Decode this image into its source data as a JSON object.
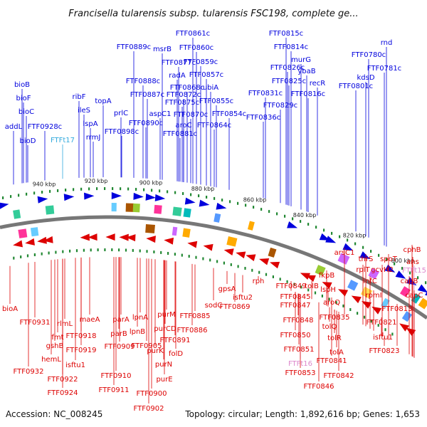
{
  "title": "Francisella tularensis subsp. tularensis FSC198, complete ge...",
  "footer": {
    "accession": "Accession: NC_008245",
    "topology": "Topology: circular; Length: 1,892,616 bp; Genes: 1,653"
  },
  "ticks": [
    "940 kbp",
    "920 kbp",
    "900 kbp",
    "880 kbp",
    "860 kbp",
    "840 kbp",
    "820 kbp",
    "800 kbp"
  ],
  "colors": {
    "forward": "#0000dd",
    "reverse": "#dd0000",
    "trna_forward": "#33aadd",
    "trna_reverse": "#dd88cc",
    "backbone": "#777777",
    "tick": "#228833"
  },
  "forward_labels": [
    "bioB",
    "bioF",
    "bioC",
    "addL",
    "bioD",
    "FTF0928c",
    "FTFt17",
    "ribF",
    "ileS",
    "lspA",
    "rrmJ",
    "topA",
    "prlC",
    "FTF0898c",
    "FTF0889c",
    "msrB",
    "FTF0888c",
    "FTF0887c",
    "FTF0890c",
    "aspC1",
    "FTF0877c",
    "radA",
    "FTF0872c",
    "FTF0875c",
    "FTF0881c",
    "aroC",
    "FTF0861c",
    "FTF0860c",
    "FTF0859c",
    "FTF0868c",
    "FTF0857c",
    "ubiA",
    "FTF0855c",
    "FTF0870c",
    "FTF0854c",
    "FTF0864c",
    "FTF0815c",
    "FTF0814c",
    "murG",
    "FTF0826c",
    "ybaB",
    "FTF0825c",
    "recR",
    "FTF0831c",
    "FTF0816c",
    "FTF0829c",
    "FTF0836c",
    "rnd",
    "FTF0780c",
    "FTF0781c",
    "kdsD",
    "FTF0801c"
  ],
  "reverse_labels": [
    "bioA",
    "FTF0931",
    "fmt",
    "rlmL",
    "gshB",
    "maeA",
    "FTF0918",
    "FTF0919",
    "hemL",
    "isftu1",
    "FTF0922",
    "FTF0932",
    "FTF0924",
    "parA",
    "lpnA",
    "parB",
    "lpnB",
    "purM",
    "purCD",
    "FTF0885",
    "FTF0886",
    "FTF0891",
    "FTF0909",
    "FTF0905",
    "purK",
    "folD",
    "purN",
    "purE",
    "FTF0910",
    "FTF0911",
    "FTF0900",
    "FTF0902",
    "sodC",
    "gpsA",
    "isftu2",
    "FTF0869",
    "rph",
    "FTF0849",
    "tolB",
    "fkpB",
    "FTF0845",
    "lspH",
    "FTF0847",
    "aroQ",
    "FTF0835",
    "FTF0848",
    "tolQ",
    "FTF0850",
    "tolR",
    "FTF0851",
    "tolA",
    "FTFt16",
    "FTF0841",
    "FTF0853",
    "FTF0842",
    "FTF0846",
    "arsC1",
    "thrS",
    "spoT",
    "cphB",
    "rplT",
    "gcvH2",
    "ans",
    "FTFt15",
    "infC",
    "capB",
    "capC",
    "rpmI",
    "FTF0813",
    "FTF0821",
    "isftu1",
    "FTF0823"
  ]
}
